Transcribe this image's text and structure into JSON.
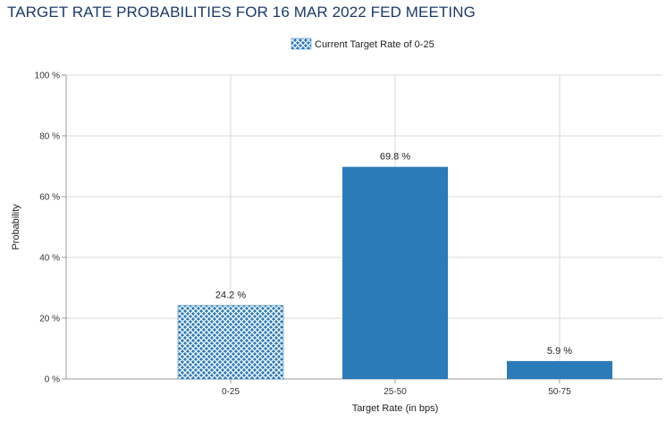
{
  "title": "TARGET RATE PROBABILITIES FOR 16 MAR 2022 FED MEETING",
  "colors": {
    "bar": "#2b7bb9",
    "grid": "#d8d8d8",
    "axis": "#999999",
    "title": "#1a3a6b"
  },
  "chart_data": {
    "type": "bar",
    "title": "TARGET RATE PROBABILITIES FOR 16 MAR 2022 FED MEETING",
    "categories": [
      "0-25",
      "25-50",
      "50-75"
    ],
    "values": [
      24.2,
      69.8,
      5.9
    ],
    "data_labels": [
      "24.2 %",
      "69.8 %",
      "5.9 %"
    ],
    "highlighted_category": "0-25",
    "xlabel": "Target Rate (in bps)",
    "ylabel": "Probability",
    "ylim": [
      0,
      100
    ],
    "y_ticks": [
      0,
      20,
      40,
      60,
      80,
      100
    ],
    "y_tick_labels": [
      "0 %",
      "20 %",
      "40 %",
      "60 %",
      "80 %",
      "100 %"
    ],
    "legend": [
      "Current Target Rate of 0-25"
    ],
    "legend_position": "top-center",
    "grid": true
  }
}
